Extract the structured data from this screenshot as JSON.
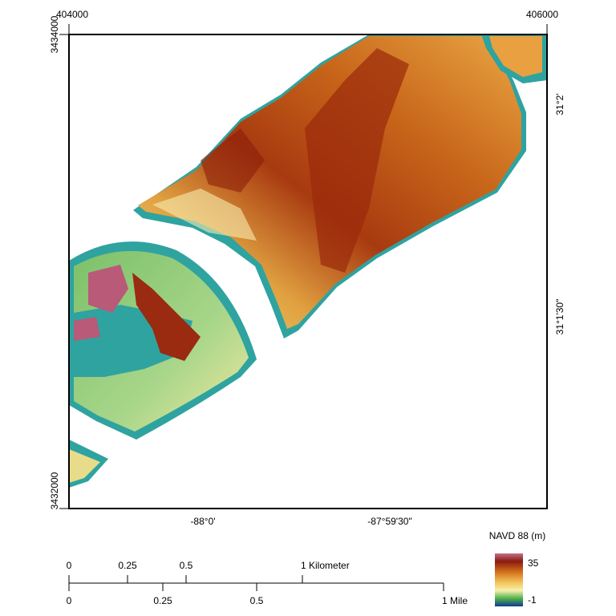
{
  "map": {
    "easting_labels": [
      "404000",
      "406000"
    ],
    "northing_labels": [
      "3434000",
      "3432000"
    ],
    "latitude_labels": [
      "31°2'",
      "31°1'30\""
    ],
    "longitude_labels": [
      "-88°0'",
      "-87°59'30\""
    ]
  },
  "legend": {
    "title": "NAVD 88 (m)",
    "max_label": "35",
    "min_label": "-1"
  },
  "scale_bar": {
    "kilometer_labels": [
      "0",
      "0.25",
      "0.5",
      "1 Kilometer"
    ],
    "mile_labels": [
      "0",
      "0.25",
      "0.5",
      "1 Mile"
    ]
  }
}
